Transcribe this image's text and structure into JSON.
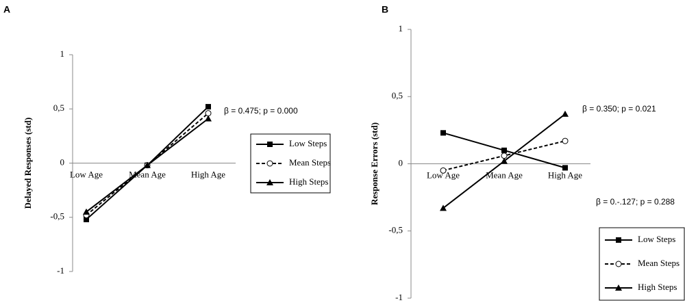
{
  "chart_data": [
    {
      "type": "line",
      "title": "A",
      "y_label": "Delayed Responses (std)",
      "categories": [
        "Low Age",
        "Mean Age",
        "High Age"
      ],
      "ylim": [
        -1,
        1
      ],
      "yticks": [
        -1,
        {
          "value": -0.5,
          "label": "-0,5"
        },
        0,
        {
          "value": 0.5,
          "label": "0,5"
        },
        1
      ],
      "series": [
        {
          "name": "Low Steps",
          "color": "#000000",
          "dash": false,
          "marker": "square",
          "values": [
            -0.52,
            -0.02,
            0.52
          ]
        },
        {
          "name": "Mean  Steps",
          "color": "#000000",
          "dash": true,
          "marker": "circle",
          "values": [
            -0.48,
            -0.02,
            0.46
          ]
        },
        {
          "name": "High Steps",
          "color": "#000000",
          "dash": false,
          "marker": "triangle",
          "values": [
            -0.45,
            -0.02,
            0.41
          ]
        }
      ],
      "annotations": [
        "β = 0.475; p = 0.000"
      ],
      "legend": "right"
    },
    {
      "type": "line",
      "title": "B",
      "y_label": "Response Errors (std)",
      "categories": [
        "Low Age",
        "Mean Age",
        "High Age"
      ],
      "ylim": [
        -1,
        1
      ],
      "yticks": [
        -1,
        {
          "value": -0.5,
          "label": "-0,5"
        },
        0,
        {
          "value": 0.5,
          "label": "0,5"
        },
        1
      ],
      "series": [
        {
          "name": "Low Steps",
          "color": "#000000",
          "dash": false,
          "marker": "square",
          "values": [
            0.23,
            0.1,
            -0.03
          ]
        },
        {
          "name": "Mean  Steps",
          "color": "#000000",
          "dash": true,
          "marker": "circle",
          "values": [
            -0.05,
            0.06,
            0.17
          ]
        },
        {
          "name": "High Steps",
          "color": "#000000",
          "dash": false,
          "marker": "triangle",
          "values": [
            -0.33,
            0.02,
            0.37
          ]
        }
      ],
      "annotations": [
        "β = 0.350; p = 0.021",
        "β = 0.-.127; p = 0.288"
      ],
      "legend": "lower right"
    }
  ]
}
